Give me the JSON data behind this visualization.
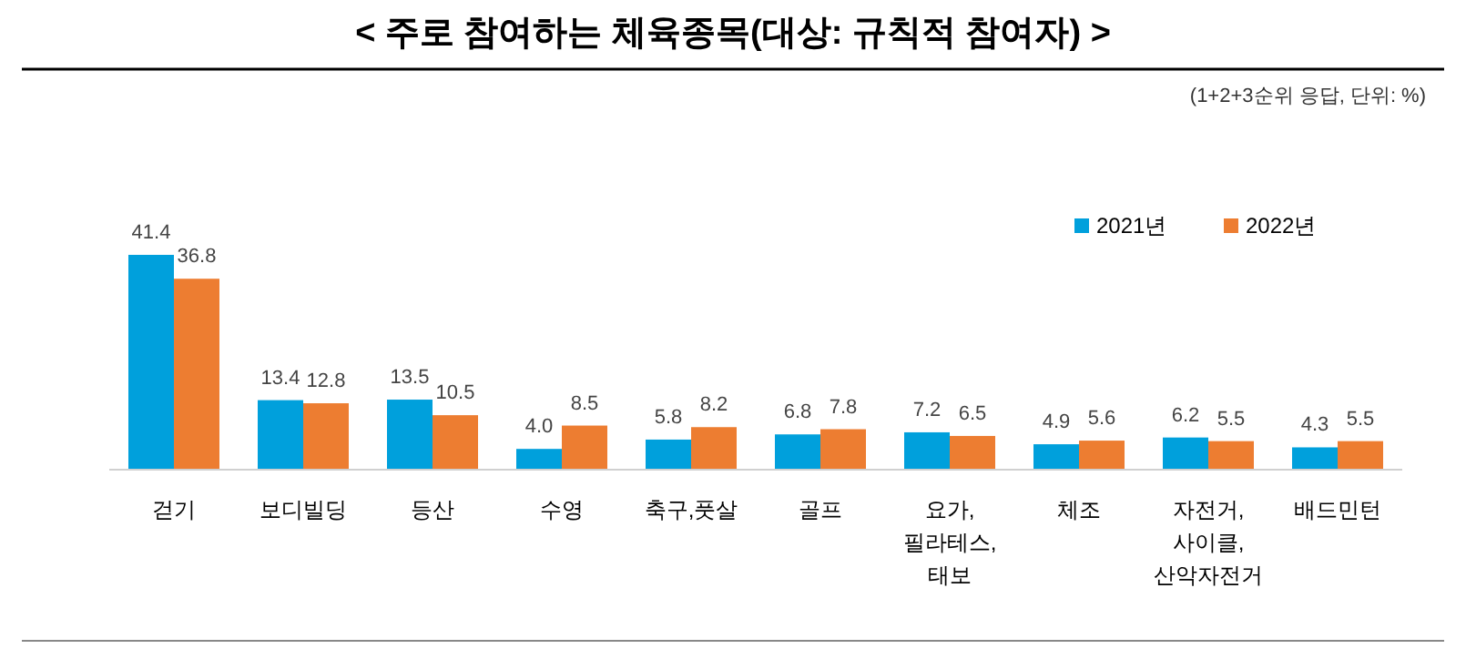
{
  "chart_data": {
    "type": "bar",
    "title": "< 주로 참여하는 체육종목(대상: 규칙적 참여자) >",
    "annotations": [
      "(1+2+3순위 응답, 단위: %)"
    ],
    "categories": [
      "걷기",
      "보디빌딩",
      "등산",
      "수영",
      "축구,풋살",
      "골프",
      "요가,\n필라테스,\n태보",
      "체조",
      "자전거,\n사이클,\n산악자전거",
      "배드민턴"
    ],
    "series": [
      {
        "name": "2021년",
        "color": "#00a0dc",
        "values": [
          41.4,
          13.4,
          13.5,
          4.0,
          5.8,
          6.8,
          7.2,
          4.9,
          6.2,
          4.3
        ],
        "value_labels": [
          "41.4",
          "13.4",
          "13.5",
          "4.0",
          "5.8",
          "6.8",
          "7.2",
          "4.9",
          "6.2",
          "4.3"
        ]
      },
      {
        "name": "2022년",
        "color": "#ed7d31",
        "values": [
          36.8,
          12.8,
          10.5,
          8.5,
          8.2,
          7.8,
          6.5,
          5.6,
          5.5,
          5.5
        ],
        "value_labels": [
          "36.8",
          "12.8",
          "10.5",
          "8.5",
          "8.2",
          "7.8",
          "6.5",
          "5.6",
          "5.5",
          "5.5"
        ]
      }
    ],
    "legend": "top right"
  }
}
